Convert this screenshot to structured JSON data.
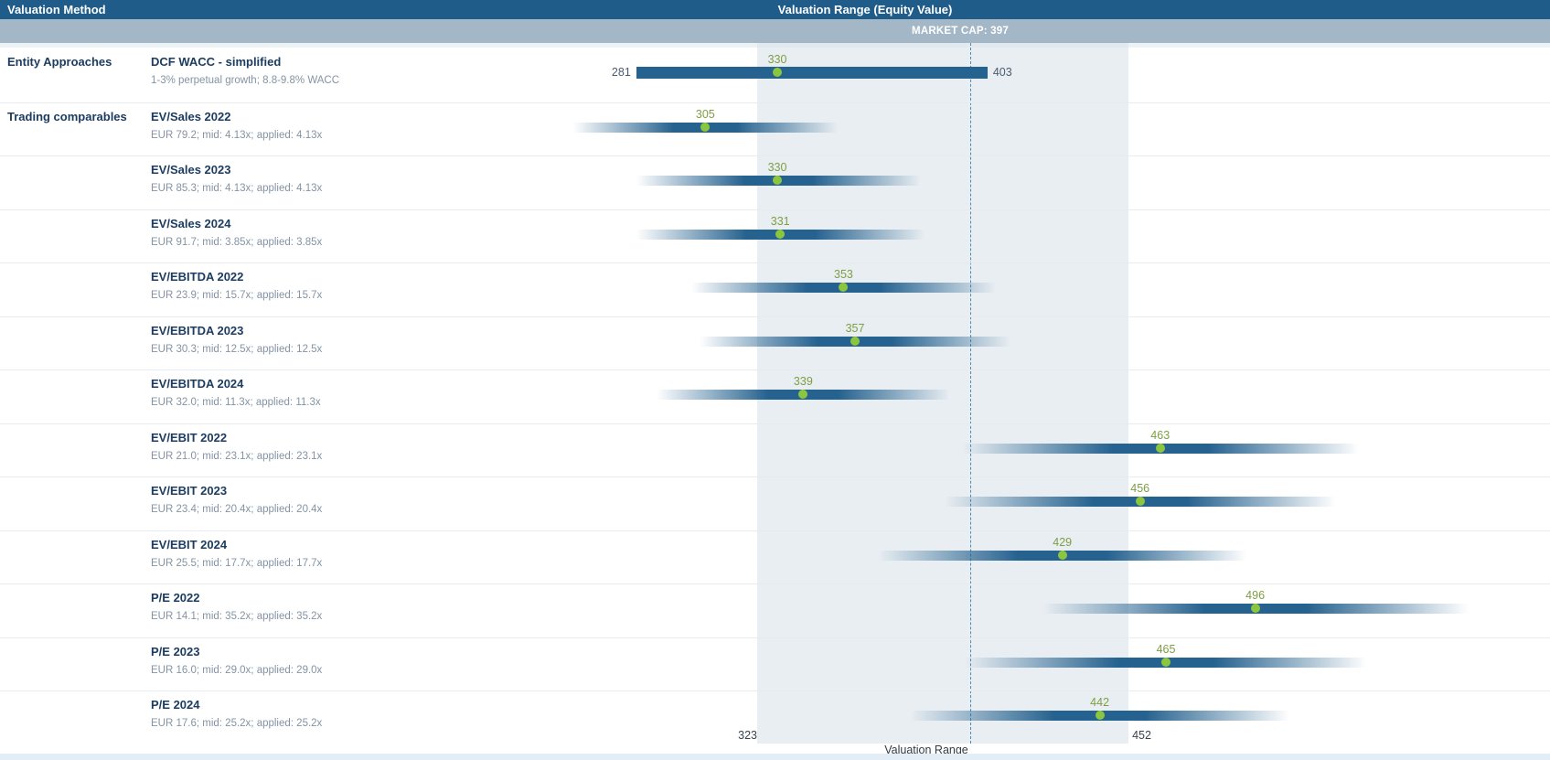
{
  "header": {
    "method_col": "Valuation Method",
    "range_col": "Valuation Range (Equity Value)"
  },
  "market_cap_label": "MARKET CAP: 397",
  "chart_data": {
    "type": "bar",
    "orientation": "horizontal-range",
    "title": "Valuation Range (Equity Value)",
    "xlabel": "Valuation Range",
    "market_cap": 397,
    "valuation_range": {
      "low": 323,
      "high": 452
    },
    "range_caption": "Valuation Range",
    "groups": [
      "Entity Approaches",
      "Trading comparables"
    ],
    "rows": [
      {
        "group_label": "Entity Approaches",
        "label": "DCF WACC - simplified",
        "sublabel": "1-3% perpetual growth; 8.8-9.8% WACC",
        "low": 281,
        "mid": 330,
        "high": 403,
        "style": "solid",
        "show_end_labels": true
      },
      {
        "group_label": "Trading comparables",
        "label": "EV/Sales 2022",
        "sublabel": "EUR 79.2; mid: 4.13x; applied: 4.13x",
        "low": 259,
        "mid": 305,
        "high": 351,
        "style": "fade"
      },
      {
        "label": "EV/Sales 2023",
        "sublabel": "EUR 85.3; mid: 4.13x; applied: 4.13x",
        "low": 281,
        "mid": 330,
        "high": 380,
        "style": "fade"
      },
      {
        "label": "EV/Sales 2024",
        "sublabel": "EUR 91.7; mid: 3.85x; applied: 3.85x",
        "low": 281,
        "mid": 331,
        "high": 381,
        "style": "fade"
      },
      {
        "label": "EV/EBITDA 2022",
        "sublabel": "EUR 23.9; mid: 15.7x; applied: 15.7x",
        "low": 300,
        "mid": 353,
        "high": 406,
        "style": "fade"
      },
      {
        "label": "EV/EBITDA 2023",
        "sublabel": "EUR 30.3; mid: 12.5x; applied: 12.5x",
        "low": 303,
        "mid": 357,
        "high": 411,
        "style": "fade"
      },
      {
        "label": "EV/EBITDA 2024",
        "sublabel": "EUR 32.0; mid: 11.3x; applied: 11.3x",
        "low": 288,
        "mid": 339,
        "high": 390,
        "style": "fade"
      },
      {
        "label": "EV/EBIT 2022",
        "sublabel": "EUR 21.0; mid: 23.1x; applied: 23.1x",
        "low": 394,
        "mid": 463,
        "high": 532,
        "style": "fade"
      },
      {
        "label": "EV/EBIT 2023",
        "sublabel": "EUR 23.4; mid: 20.4x; applied: 20.4x",
        "low": 388,
        "mid": 456,
        "high": 524,
        "style": "fade"
      },
      {
        "label": "EV/EBIT 2024",
        "sublabel": "EUR 25.5; mid: 17.7x; applied: 17.7x",
        "low": 365,
        "mid": 429,
        "high": 493,
        "style": "fade"
      },
      {
        "label": "P/E 2022",
        "sublabel": "EUR 14.1; mid: 35.2x; applied: 35.2x",
        "low": 422,
        "mid": 496,
        "high": 570,
        "style": "fade"
      },
      {
        "label": "P/E 2023",
        "sublabel": "EUR 16.0; mid: 29.0x; applied: 29.0x",
        "low": 395,
        "mid": 465,
        "high": 535,
        "style": "fade"
      },
      {
        "label": "P/E 2024",
        "sublabel": "EUR 17.6; mid: 25.2x; applied: 25.2x",
        "low": 376,
        "mid": 442,
        "high": 508,
        "style": "fade"
      }
    ],
    "colors": {
      "bar": "#26628f",
      "dot": "#8cc63f",
      "mid_label": "#7e9e45",
      "band": "#e9eef2",
      "dashed_line": "#4d8ab8",
      "header_bg": "#1f5c8a",
      "subheader_bg": "#a4b7c6"
    },
    "legend": false,
    "grid": false
  }
}
